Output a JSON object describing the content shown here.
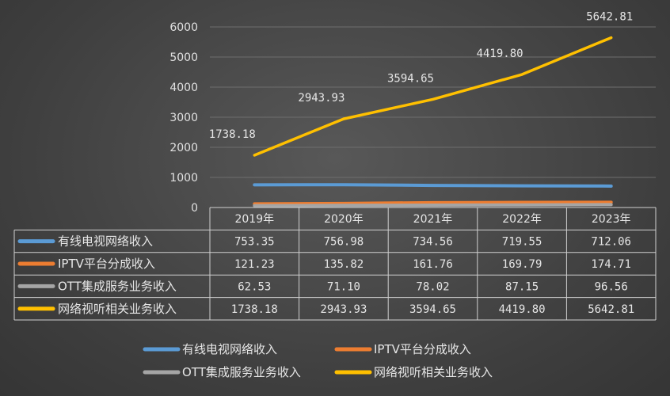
{
  "chart_data": {
    "type": "line",
    "categories": [
      "2019年",
      "2020年",
      "2021年",
      "2022年",
      "2023年"
    ],
    "ylim": [
      0,
      6000
    ],
    "yticks": [
      0,
      1000,
      2000,
      3000,
      4000,
      5000,
      6000
    ],
    "grid": true,
    "legend_position": "bottom",
    "data_labels_series": 3,
    "data_labels": [
      "1738.18",
      "2943.93",
      "3594.65",
      "4419.80",
      "5642.81"
    ],
    "series": [
      {
        "name": "有线电视网络收入",
        "color": "#5b9bd5",
        "values": [
          753.35,
          756.98,
          734.56,
          719.55,
          712.06
        ],
        "labels": [
          "753.35",
          "756.98",
          "734.56",
          "719.55",
          "712.06"
        ]
      },
      {
        "name": "IPTV平台分成收入",
        "color": "#ed7d31",
        "values": [
          121.23,
          135.82,
          161.76,
          169.79,
          174.71
        ],
        "labels": [
          "121.23",
          "135.82",
          "161.76",
          "169.79",
          "174.71"
        ]
      },
      {
        "name": "OTT集成服务业务收入",
        "color": "#a5a5a5",
        "values": [
          62.53,
          71.1,
          78.02,
          87.15,
          96.56
        ],
        "labels": [
          "62.53",
          "71.10",
          "78.02",
          "87.15",
          "96.56"
        ]
      },
      {
        "name": "网络视听相关业务收入",
        "color": "#ffc000",
        "values": [
          1738.18,
          2943.93,
          3594.65,
          4419.8,
          5642.81
        ],
        "labels": [
          "1738.18",
          "2943.93",
          "3594.65",
          "4419.80",
          "5642.81"
        ]
      }
    ]
  }
}
